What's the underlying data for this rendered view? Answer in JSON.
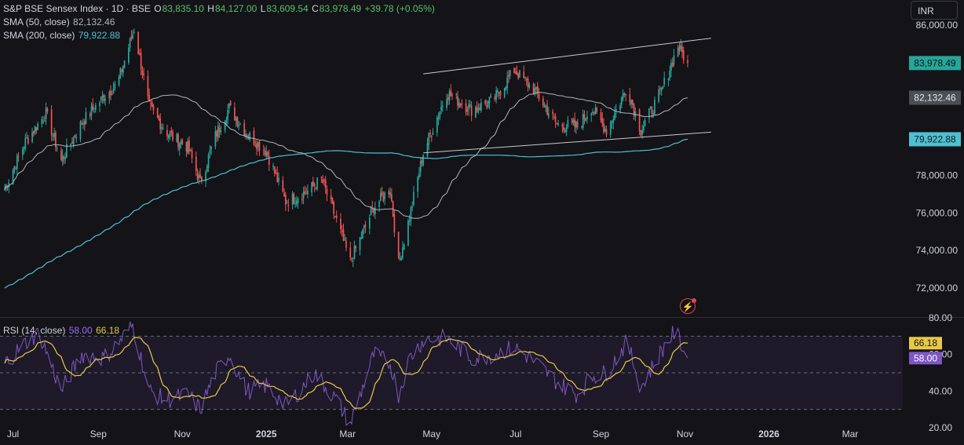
{
  "header": {
    "symbol": "S&P BSE Sensex Index · 1D · BSE",
    "open_label": "O",
    "open": "83,835.10",
    "high_label": "H",
    "high": "84,127.00",
    "low_label": "L",
    "low": "83,609.54",
    "close_label": "C",
    "close": "83,978.49",
    "change": "+39.78 (+0.05%)",
    "sma50_label": "SMA (50, close)",
    "sma50_value": "82,132.46",
    "sma200_label": "SMA (200, close)",
    "sma200_value": "79,922.88",
    "rsi_label": "RSI (14, close)",
    "rsi_value": "58.00",
    "rsi_ma_value": "66.18"
  },
  "currency_button": "INR",
  "colors": {
    "up": "#26a69a",
    "down": "#ef5350",
    "sma50": "#b2b5be",
    "sma200": "#4fc0d0",
    "rsi": "#7e57c2",
    "rsi_ma": "#e8c84a"
  },
  "chart_data": [
    {
      "type": "candlestick",
      "title": "S&P BSE Sensex Index · 1D · BSE",
      "ylim": [
        70500,
        87000
      ],
      "y_ticks": [
        72000,
        74000,
        76000,
        78000,
        80000,
        82000,
        84000,
        86000
      ],
      "y_tick_labels": [
        "72,000.00",
        "74,000.00",
        "76,000.00",
        "78,000.00",
        "80,000.00",
        "82,000.00",
        "84,000.00",
        "86,000.00"
      ],
      "x_tick_labels": [
        "Jul",
        "Sep",
        "Nov",
        "2025",
        "Mar",
        "May",
        "Jul",
        "Sep",
        "Nov",
        "2026",
        "Mar"
      ],
      "price_path": [
        [
          "2024-06-25",
          77300
        ],
        [
          "2024-07-10",
          79800
        ],
        [
          "2024-07-25",
          81300
        ],
        [
          "2024-08-05",
          78800
        ],
        [
          "2024-08-20",
          80800
        ],
        [
          "2024-09-05",
          82200
        ],
        [
          "2024-09-15",
          82900
        ],
        [
          "2024-09-27",
          85800
        ],
        [
          "2024-10-08",
          81600
        ],
        [
          "2024-10-22",
          80200
        ],
        [
          "2024-11-05",
          79500
        ],
        [
          "2024-11-14",
          77600
        ],
        [
          "2024-11-25",
          80100
        ],
        [
          "2024-12-05",
          81600
        ],
        [
          "2024-12-18",
          80200
        ],
        [
          "2025-01-01",
          79300
        ],
        [
          "2025-01-15",
          76600
        ],
        [
          "2025-01-30",
          77100
        ],
        [
          "2025-02-10",
          77800
        ],
        [
          "2025-02-20",
          75800
        ],
        [
          "2025-03-03",
          73400
        ],
        [
          "2025-03-20",
          76300
        ],
        [
          "2025-04-01",
          77300
        ],
        [
          "2025-04-07",
          73300
        ],
        [
          "2025-04-15",
          75800
        ],
        [
          "2025-04-25",
          79200
        ],
        [
          "2025-05-12",
          82400
        ],
        [
          "2025-05-30",
          81500
        ],
        [
          "2025-06-15",
          82000
        ],
        [
          "2025-06-30",
          83600
        ],
        [
          "2025-07-15",
          82500
        ],
        [
          "2025-07-31",
          80700
        ],
        [
          "2025-08-15",
          80600
        ],
        [
          "2025-08-25",
          81600
        ],
        [
          "2025-09-05",
          80400
        ],
        [
          "2025-09-20",
          82700
        ],
        [
          "2025-09-30",
          80400
        ],
        [
          "2025-10-15",
          82500
        ],
        [
          "2025-10-27",
          84900
        ],
        [
          "2025-11-03",
          83978.49
        ]
      ],
      "sma50_last": 82132.46,
      "sma200_last": 79922.88,
      "last_price": 83978.49,
      "price_tags": [
        {
          "label": "83,978.49",
          "value": 83978.49,
          "color": "#26a69a"
        },
        {
          "label": "82,132.46",
          "value": 82132.46,
          "color": "#b2b5be"
        },
        {
          "label": "79,922.88",
          "value": 79922.88,
          "color": "#4fc0d0"
        }
      ],
      "trendlines": [
        {
          "from": [
            "2025-04-25",
            83400
          ],
          "to": [
            "2025-11-20",
            85300
          ]
        },
        {
          "from": [
            "2025-04-25",
            79200
          ],
          "to": [
            "2025-11-20",
            80300
          ]
        }
      ]
    },
    {
      "type": "line",
      "title": "RSI (14, close)",
      "ylim": [
        20,
        80
      ],
      "y_ticks": [
        20,
        40,
        60,
        80
      ],
      "y_tick_labels": [
        "20.00",
        "40.00",
        "60.00",
        "80.00"
      ],
      "bands": [
        30,
        50,
        70
      ],
      "rsi_path": [
        [
          "2024-06-25",
          55
        ],
        [
          "2024-07-08",
          65
        ],
        [
          "2024-07-20",
          72
        ],
        [
          "2024-08-05",
          40
        ],
        [
          "2024-08-20",
          60
        ],
        [
          "2024-09-05",
          58
        ],
        [
          "2024-09-15",
          66
        ],
        [
          "2024-09-26",
          76
        ],
        [
          "2024-10-08",
          40
        ],
        [
          "2024-10-20",
          35
        ],
        [
          "2024-11-05",
          38
        ],
        [
          "2024-11-14",
          30
        ],
        [
          "2024-11-25",
          50
        ],
        [
          "2024-12-05",
          60
        ],
        [
          "2024-12-18",
          40
        ],
        [
          "2025-01-01",
          43
        ],
        [
          "2025-01-15",
          32
        ],
        [
          "2025-01-25",
          40
        ],
        [
          "2025-02-05",
          50
        ],
        [
          "2025-02-20",
          36
        ],
        [
          "2025-03-03",
          22
        ],
        [
          "2025-03-20",
          60
        ],
        [
          "2025-04-01",
          55
        ],
        [
          "2025-04-07",
          38
        ],
        [
          "2025-04-15",
          58
        ],
        [
          "2025-04-25",
          68
        ],
        [
          "2025-05-12",
          69
        ],
        [
          "2025-05-30",
          58
        ],
        [
          "2025-06-15",
          60
        ],
        [
          "2025-06-30",
          64
        ],
        [
          "2025-07-15",
          56
        ],
        [
          "2025-07-31",
          45
        ],
        [
          "2025-08-15",
          38
        ],
        [
          "2025-08-25",
          48
        ],
        [
          "2025-09-05",
          50
        ],
        [
          "2025-09-20",
          67
        ],
        [
          "2025-09-30",
          42
        ],
        [
          "2025-10-15",
          62
        ],
        [
          "2025-10-25",
          73
        ],
        [
          "2025-11-03",
          58
        ]
      ],
      "rsi_last": 58.0,
      "rsi_ma_last": 66.18,
      "value_tags": [
        {
          "label": "66.18",
          "value": 66.18,
          "color": "#e8c84a"
        },
        {
          "label": "58.00",
          "value": 58.0,
          "color": "#7e57c2"
        }
      ]
    }
  ]
}
